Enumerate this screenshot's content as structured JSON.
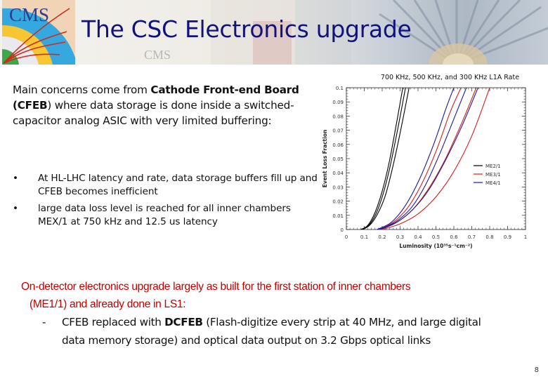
{
  "slide": {
    "title": "The CSC Electronics upgrade",
    "logo_text": "CMS",
    "watermark_text": "CMS",
    "page_number": "8"
  },
  "intro": {
    "text_1": "Main concerns come from ",
    "bold_1": "Cathode Front-end Board (CFEB",
    "text_2": ") where data storage is done inside a switched-capacitor analog ASIC with very limited buffering:"
  },
  "bullets": [
    {
      "marker": "•",
      "text": "At HL-LHC  latency and rate, data storage buffers fill up and CFEB becomes inefficient"
    },
    {
      "marker": "•",
      "text": "large data loss level is reached for all inner chambers MEX/1 at 750 kHz and 12.5 us latency"
    }
  ],
  "upgrade": {
    "line_1": "On-detector electronics upgrade largely as built for the first station of inner chambers",
    "line_2": "(ME1/1) and already done in LS1:",
    "sub_marker": "-",
    "sub_text_1": "CFEB replaced with ",
    "sub_bold": "DCFEB",
    "sub_text_2": " (Flash-digitize every strip at 40 MHz, and large digital",
    "sub_line_2": "data memory storage) and optical data output on 3.2 Gbps optical links"
  },
  "colors": {
    "title": "#12127e",
    "highlight_text": "#c00000",
    "series_me21": "#000000",
    "series_me31": "#d42020",
    "series_me41": "#1a1a9c"
  },
  "chart_data": {
    "type": "line",
    "title": "700 KHz, 500 KHz, and 300 KHz L1A Rate",
    "xlabel": "Luminosity (10³⁵s⁻¹cm⁻²)",
    "ylabel": "Event Loss Fraction",
    "xlim": [
      0,
      1
    ],
    "ylim": [
      0,
      0.1
    ],
    "xticks": [
      "0",
      "0.1",
      "0.2",
      "0.3",
      "0.4",
      "0.5",
      "0.6",
      "0.7",
      "0.8",
      "0.9",
      "1"
    ],
    "yticks": [
      "0",
      "0.01",
      "0.02",
      "0.03",
      "0.04",
      "0.05",
      "0.06",
      "0.07",
      "0.08",
      "0.09",
      "0.1"
    ],
    "grid": false,
    "legend_position": "right-center",
    "legend": [
      "ME2/1",
      "ME3/1",
      "ME4/1"
    ],
    "series": [
      {
        "name": "ME2/1 (700 KHz)",
        "color": "#000000",
        "x": [
          0.08,
          0.12,
          0.16,
          0.2,
          0.24,
          0.28,
          0.315
        ],
        "y": [
          0,
          0.003,
          0.012,
          0.027,
          0.048,
          0.075,
          0.1
        ]
      },
      {
        "name": "ME2/1 (500 KHz)",
        "color": "#000000",
        "x": [
          0.085,
          0.125,
          0.165,
          0.205,
          0.245,
          0.29,
          0.33
        ],
        "y": [
          0,
          0.003,
          0.011,
          0.025,
          0.045,
          0.073,
          0.1
        ]
      },
      {
        "name": "ME2/1 (300 KHz)",
        "color": "#000000",
        "x": [
          0.09,
          0.13,
          0.17,
          0.215,
          0.255,
          0.3,
          0.35
        ],
        "y": [
          0,
          0.003,
          0.01,
          0.023,
          0.042,
          0.068,
          0.1
        ]
      },
      {
        "name": "ME4/1 (700 KHz)",
        "color": "#1a1a9c",
        "x": [
          0.17,
          0.25,
          0.33,
          0.41,
          0.49,
          0.555,
          0.6
        ],
        "y": [
          0,
          0.005,
          0.017,
          0.036,
          0.061,
          0.085,
          0.1
        ]
      },
      {
        "name": "ME3/1 (700 KHz)",
        "color": "#d42020",
        "x": [
          0.18,
          0.26,
          0.34,
          0.42,
          0.5,
          0.58,
          0.64
        ],
        "y": [
          0,
          0.005,
          0.015,
          0.032,
          0.055,
          0.083,
          0.1
        ]
      },
      {
        "name": "ME4/1 (500 KHz)",
        "color": "#1a1a9c",
        "x": [
          0.18,
          0.27,
          0.36,
          0.44,
          0.52,
          0.6,
          0.67
        ],
        "y": [
          0,
          0.005,
          0.015,
          0.031,
          0.053,
          0.078,
          0.1
        ]
      },
      {
        "name": "ME3/1 (500 KHz)",
        "color": "#d42020",
        "x": [
          0.19,
          0.28,
          0.37,
          0.46,
          0.55,
          0.64,
          0.725
        ],
        "y": [
          0,
          0.005,
          0.014,
          0.029,
          0.049,
          0.074,
          0.1
        ]
      },
      {
        "name": "ME4/1 (300 KHz)",
        "color": "#1a1a9c",
        "x": [
          0.19,
          0.28,
          0.37,
          0.46,
          0.55,
          0.645,
          0.735
        ],
        "y": [
          0,
          0.005,
          0.014,
          0.028,
          0.048,
          0.073,
          0.1
        ]
      },
      {
        "name": "ME3/1 (300 KHz)",
        "color": "#d42020",
        "x": [
          0.2,
          0.3,
          0.4,
          0.5,
          0.6,
          0.7,
          0.8
        ],
        "y": [
          0,
          0.004,
          0.011,
          0.023,
          0.041,
          0.066,
          0.1
        ]
      }
    ]
  }
}
